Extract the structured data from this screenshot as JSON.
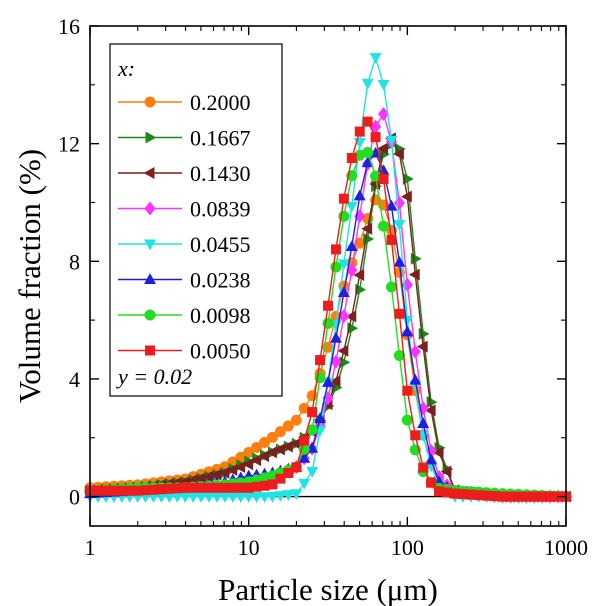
{
  "chart_data": {
    "type": "line",
    "xscale": "log",
    "xlim": [
      1,
      1000
    ],
    "ylim": [
      -1,
      16
    ],
    "xticks": [
      1,
      10,
      100,
      1000
    ],
    "xtick_labels": [
      "1",
      "10",
      "100",
      "1000"
    ],
    "yticks": [
      0,
      4,
      8,
      12,
      16
    ],
    "ytick_labels": [
      "0",
      "4",
      "8",
      "12",
      "16"
    ],
    "xlabel": "Particle size  (μm)",
    "ylabel": "Volume fraction  (%)",
    "grid": false,
    "legend": {
      "position": "top-left",
      "header": "x:",
      "footer": "y = 0.02"
    },
    "series": [
      {
        "name": "0.2000",
        "color": "#ff7f0e",
        "marker": "circle",
        "x": [
          1,
          2,
          4,
          7,
          10,
          14,
          20,
          25,
          30,
          35,
          40,
          45,
          50,
          55,
          60,
          65,
          70,
          80,
          90,
          100,
          120,
          150,
          200,
          400,
          1000
        ],
        "y": [
          0.3,
          0.4,
          0.6,
          1.0,
          1.5,
          2.0,
          2.6,
          3.4,
          4.6,
          6.0,
          7.2,
          8.0,
          8.6,
          9.3,
          9.9,
          10.2,
          10.0,
          9.0,
          7.5,
          5.5,
          2.5,
          0.6,
          0.1,
          0.0,
          0.0
        ]
      },
      {
        "name": "0.1667",
        "color": "#1a8a1a",
        "marker": "triangle-right",
        "x": [
          1,
          2,
          4,
          7,
          10,
          14,
          20,
          25,
          30,
          35,
          40,
          45,
          50,
          55,
          60,
          65,
          70,
          80,
          90,
          100,
          120,
          150,
          200,
          400,
          1000
        ],
        "y": [
          0.2,
          0.3,
          0.5,
          0.8,
          1.2,
          1.5,
          1.8,
          2.2,
          2.8,
          3.6,
          4.6,
          5.8,
          7.0,
          8.4,
          9.8,
          11.0,
          11.6,
          12.0,
          11.8,
          10.8,
          6.5,
          2.0,
          0.2,
          0.0,
          0.0
        ]
      },
      {
        "name": "0.1430",
        "color": "#7b1f1f",
        "marker": "triangle-left",
        "x": [
          1,
          2,
          4,
          7,
          10,
          14,
          20,
          25,
          30,
          35,
          40,
          45,
          50,
          55,
          60,
          65,
          70,
          80,
          90,
          100,
          120,
          150,
          200,
          400,
          1000
        ],
        "y": [
          0.2,
          0.3,
          0.5,
          0.8,
          1.1,
          1.5,
          1.8,
          2.2,
          2.8,
          3.8,
          5.0,
          6.2,
          7.5,
          8.8,
          10.0,
          11.0,
          11.8,
          12.2,
          11.6,
          10.2,
          6.0,
          1.8,
          0.2,
          0.0,
          0.0
        ]
      },
      {
        "name": "0.0839",
        "color": "#ff33ff",
        "marker": "diamond",
        "x": [
          1,
          2,
          4,
          7,
          10,
          14,
          20,
          25,
          30,
          35,
          40,
          45,
          50,
          55,
          60,
          65,
          70,
          80,
          90,
          100,
          120,
          150,
          200,
          400,
          1000
        ],
        "y": [
          0.1,
          0.1,
          0.2,
          0.3,
          0.5,
          0.7,
          1.0,
          1.6,
          2.8,
          4.4,
          6.2,
          7.8,
          9.5,
          11.0,
          12.2,
          12.8,
          13.1,
          12.0,
          9.8,
          7.2,
          3.6,
          0.8,
          0.1,
          0.0,
          0.0
        ]
      },
      {
        "name": "0.0455",
        "color": "#22e3e3",
        "marker": "triangle-down",
        "x": [
          1,
          2,
          4,
          7,
          10,
          14,
          20,
          25,
          30,
          35,
          40,
          45,
          50,
          55,
          60,
          65,
          70,
          80,
          90,
          100,
          120,
          150,
          200,
          400,
          1000
        ],
        "y": [
          0.0,
          0.0,
          0.0,
          0.0,
          0.0,
          0.0,
          0.1,
          0.8,
          3.0,
          5.6,
          8.0,
          10.0,
          12.0,
          13.8,
          14.8,
          15.0,
          14.2,
          12.0,
          9.0,
          6.0,
          2.5,
          0.5,
          0.0,
          0.0,
          0.0
        ]
      },
      {
        "name": "0.0238",
        "color": "#1f1fe0",
        "marker": "triangle-up",
        "x": [
          1,
          2,
          4,
          7,
          10,
          14,
          20,
          25,
          30,
          35,
          40,
          45,
          50,
          55,
          60,
          65,
          70,
          80,
          90,
          100,
          120,
          150,
          200,
          400,
          1000
        ],
        "y": [
          0.1,
          0.2,
          0.3,
          0.5,
          0.7,
          0.8,
          1.0,
          1.6,
          3.2,
          5.2,
          7.0,
          8.6,
          10.2,
          11.2,
          11.8,
          11.6,
          11.2,
          9.8,
          7.8,
          5.6,
          3.0,
          0.6,
          0.1,
          0.0,
          0.0
        ]
      },
      {
        "name": "0.0098",
        "color": "#22dd22",
        "marker": "circle",
        "x": [
          1,
          2,
          4,
          7,
          10,
          14,
          20,
          25,
          30,
          35,
          40,
          45,
          50,
          55,
          60,
          65,
          70,
          80,
          90,
          100,
          120,
          150,
          200,
          400,
          1000
        ],
        "y": [
          0.2,
          0.3,
          0.3,
          0.4,
          0.5,
          0.7,
          1.0,
          2.2,
          5.0,
          7.6,
          9.6,
          11.0,
          11.6,
          11.8,
          11.4,
          10.6,
          9.4,
          7.0,
          4.6,
          2.6,
          1.0,
          0.3,
          0.2,
          0.1,
          0.0
        ]
      },
      {
        "name": "0.0050",
        "color": "#ee1c1c",
        "marker": "square",
        "x": [
          1,
          2,
          4,
          7,
          10,
          14,
          20,
          25,
          30,
          35,
          40,
          45,
          50,
          55,
          60,
          65,
          70,
          80,
          90,
          100,
          120,
          150,
          200,
          400,
          1000
        ],
        "y": [
          0.2,
          0.2,
          0.3,
          0.3,
          0.3,
          0.4,
          1.0,
          2.8,
          5.6,
          8.2,
          10.2,
          11.6,
          12.4,
          12.8,
          12.6,
          12.0,
          11.0,
          8.6,
          6.0,
          3.6,
          1.2,
          0.2,
          0.1,
          0.0,
          0.0
        ]
      }
    ]
  }
}
